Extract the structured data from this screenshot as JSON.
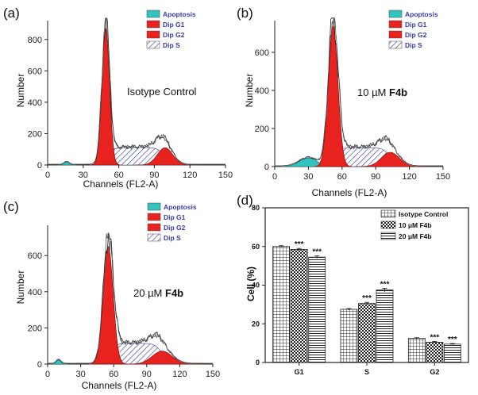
{
  "colors": {
    "apoptosis": "#33c3c0",
    "g1": "#e8231f",
    "g2": "#e8231f",
    "s_fill": "#ffffff",
    "s_hatch": "#3b3f8f",
    "legend_text": "#3a3ab0"
  },
  "panels": {
    "a": {
      "label": "(a)",
      "condition": "Isotype Control",
      "condition_bold": "",
      "legend": [
        "Apoptosis",
        "Dip G1",
        "Dip G2",
        "Dip S"
      ],
      "xlabel": "Channels (FL2-A)",
      "ylabel": "Number",
      "xticks": [
        "0",
        "30",
        "60",
        "90",
        "120",
        "150"
      ],
      "yticks": [
        "0",
        "200",
        "400",
        "600",
        "800"
      ]
    },
    "b": {
      "label": "(b)",
      "condition": "10 µM ",
      "condition_bold": "F4b",
      "legend": [
        "Apoptosis",
        "Dip G1",
        "Dip G2",
        "Dip S"
      ],
      "xlabel": "Channels (FL2-A)",
      "ylabel": "Number",
      "xticks": [
        "0",
        "30",
        "60",
        "90",
        "120",
        "150"
      ],
      "yticks": [
        "0",
        "200",
        "400",
        "600"
      ]
    },
    "c": {
      "label": "(c)",
      "condition": "20 µM ",
      "condition_bold": "F4b",
      "legend": [
        "Apoptosis",
        "Dip G1",
        "Dip G2",
        "Dip S"
      ],
      "xlabel": "Channels (FL2-A)",
      "ylabel": "Number",
      "xticks": [
        "0",
        "30",
        "60",
        "90",
        "120",
        "150"
      ],
      "yticks": [
        "0",
        "200",
        "400",
        "600"
      ]
    },
    "d": {
      "label": "(d)",
      "ylabel": "Cell (%)",
      "yticks": [
        "0",
        "20",
        "40",
        "60",
        "80"
      ],
      "categories": [
        "G1",
        "S",
        "G2"
      ],
      "legend": [
        "Isotype Control",
        "10 μM F4b",
        "20 μM F4b"
      ],
      "sig": "***"
    }
  },
  "chart_data": [
    {
      "panel": "a",
      "type": "area",
      "xlim": [
        0,
        150
      ],
      "ylim": [
        0,
        900
      ],
      "series": [
        {
          "name": "Apoptosis",
          "center": 16,
          "sigma": 2.2,
          "height": 18
        },
        {
          "name": "Dip G1",
          "center": 49,
          "sigma": 3.2,
          "height": 870
        },
        {
          "name": "Dip G2",
          "center": 99,
          "sigma": 6.5,
          "height": 110
        },
        {
          "name": "Dip S",
          "from": 49,
          "to": 99,
          "height": 112
        }
      ]
    },
    {
      "panel": "b",
      "type": "area",
      "xlim": [
        0,
        150
      ],
      "ylim": [
        0,
        750
      ],
      "series": [
        {
          "name": "Apoptosis",
          "center": 30,
          "sigma": 8,
          "height": 45
        },
        {
          "name": "Dip G1",
          "center": 52,
          "sigma": 4.3,
          "height": 740
        },
        {
          "name": "Dip G2",
          "center": 103,
          "sigma": 8,
          "height": 75
        },
        {
          "name": "Dip S",
          "from": 52,
          "to": 103,
          "height": 100
        }
      ]
    },
    {
      "panel": "c",
      "type": "area",
      "xlim": [
        0,
        150
      ],
      "ylim": [
        0,
        750
      ],
      "series": [
        {
          "name": "Apoptosis",
          "center": 10,
          "sigma": 2.2,
          "height": 22
        },
        {
          "name": "Dip G1",
          "center": 55,
          "sigma": 4.5,
          "height": 650
        },
        {
          "name": "Dip G2",
          "center": 104,
          "sigma": 9,
          "height": 72
        },
        {
          "name": "Dip S",
          "from": 55,
          "to": 104,
          "height": 115
        }
      ]
    },
    {
      "panel": "d",
      "type": "bar",
      "categories": [
        "G1",
        "S",
        "G2"
      ],
      "ylabel": "Cell (%)",
      "ylim": [
        0,
        80
      ],
      "series": [
        {
          "name": "Isotype Control",
          "values": [
            60,
            27.5,
            12.5
          ],
          "errors": [
            0.4,
            0.4,
            0.3
          ]
        },
        {
          "name": "10 μM F4b",
          "values": [
            58.5,
            30.5,
            10.5
          ],
          "errors": [
            0.5,
            0.6,
            0.4
          ]
        },
        {
          "name": "20 μM F4b",
          "values": [
            54.5,
            37.5,
            9.5
          ],
          "errors": [
            0.6,
            0.9,
            0.3
          ]
        }
      ],
      "significance": [
        [
          false,
          true,
          true
        ],
        [
          false,
          true,
          true
        ],
        [
          false,
          true,
          true
        ]
      ]
    }
  ]
}
